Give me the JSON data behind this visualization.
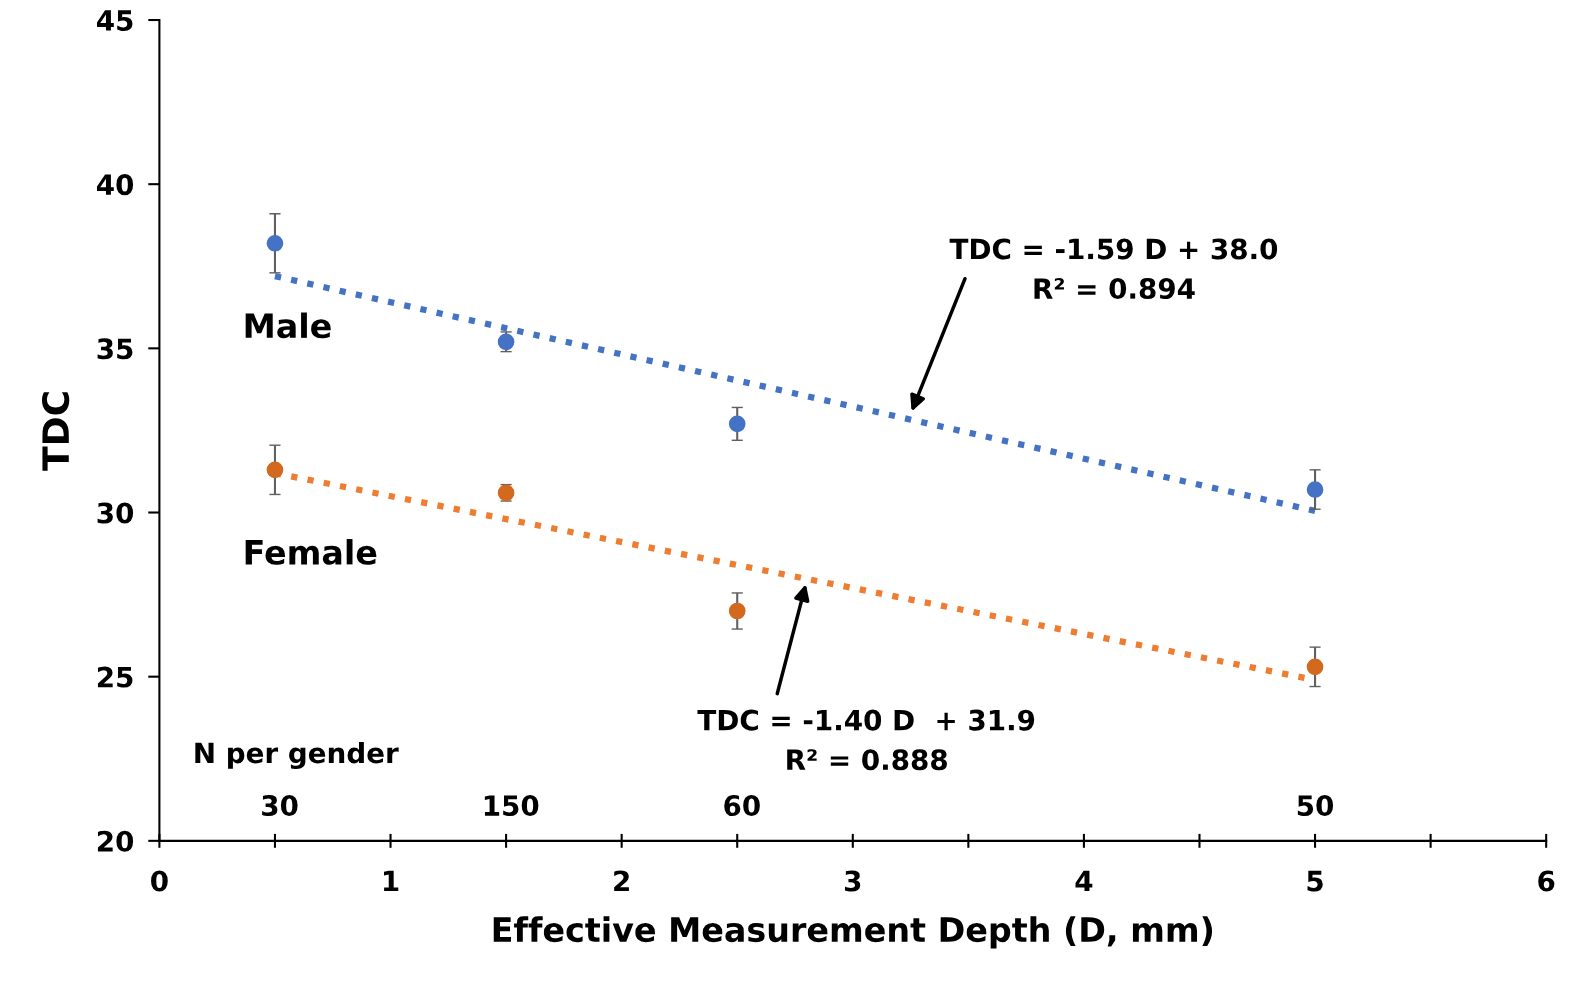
{
  "chart_data": {
    "type": "scatter",
    "xlabel": "Effective Measurement Depth (D, mm)",
    "ylabel": "TDC",
    "xlim": [
      0,
      6
    ],
    "ylim": [
      20,
      45
    ],
    "xticks": [
      0,
      {
        "value": 0.5,
        "label": null
      },
      1,
      {
        "value": 1.5,
        "label": null
      },
      2,
      {
        "value": 2.5,
        "label": null
      },
      3,
      {
        "value": 3.5,
        "label": null
      },
      4,
      {
        "value": 4.5,
        "label": null
      },
      5,
      {
        "value": 5.5,
        "label": null
      },
      6
    ],
    "yticks": [
      20,
      25,
      30,
      35,
      40,
      45
    ],
    "grid": false,
    "series": [
      {
        "name": "Male",
        "marker": "circle",
        "color": "#4472c4",
        "x": [
          0.5,
          1.5,
          2.5,
          5
        ],
        "values": [
          38.2,
          35.2,
          32.7,
          30.7
        ],
        "errors": [
          0.9,
          0.3,
          0.5,
          0.6
        ]
      },
      {
        "name": "Female",
        "marker": "circle",
        "color": "#d2691e",
        "x": [
          0.5,
          1.5,
          2.5,
          5
        ],
        "values": [
          31.3,
          30.6,
          27.0,
          25.3
        ],
        "errors": [
          0.75,
          0.25,
          0.55,
          0.6
        ]
      },
      {
        "type": "line",
        "line_style": "dotted",
        "color": "#4472c4",
        "x": [
          0.5,
          5
        ],
        "values": [
          37.2,
          30.05
        ]
      },
      {
        "type": "line",
        "line_style": "dotted",
        "color": "#ed7d31",
        "x": [
          0.5,
          5
        ],
        "values": [
          31.2,
          24.9
        ]
      }
    ],
    "annotations": [
      "TDC = -1.59 D + 38.0\nR² = 0.894",
      "TDC = -1.40 D  + 31.9\nR² = 0.888",
      "N per gender",
      "30",
      "150",
      "60",
      "50"
    ]
  }
}
